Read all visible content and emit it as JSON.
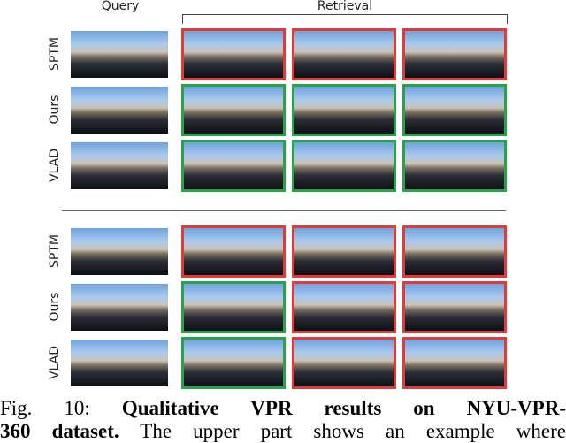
{
  "header": {
    "query": "Query",
    "retrieval": "Retrieval"
  },
  "groups": [
    {
      "rows": [
        {
          "label": "SPTM",
          "retrievals": [
            "#e23a36",
            "#e23a36",
            "#e23a36"
          ]
        },
        {
          "label": "Ours",
          "retrievals": [
            "#27a348",
            "#27a348",
            "#27a348"
          ]
        },
        {
          "label": "VLAD",
          "retrievals": [
            "#27a348",
            "#27a348",
            "#27a348"
          ]
        }
      ]
    },
    {
      "rows": [
        {
          "label": "SPTM",
          "retrievals": [
            "#e23a36",
            "#e23a36",
            "#e23a36"
          ]
        },
        {
          "label": "Ours",
          "retrievals": [
            "#27a348",
            "#e23a36",
            "#e23a36"
          ]
        },
        {
          "label": "VLAD",
          "retrievals": [
            "#27a348",
            "#e23a36",
            "#e23a36"
          ]
        }
      ]
    }
  ],
  "caption": {
    "lines": [
      [
        {
          "text": "Fig. 10: ",
          "bold": false
        },
        {
          "text": "Qualitative VPR results on NYU-VPR-",
          "bold": true
        }
      ],
      [
        {
          "text": "360 dataset.",
          "bold": true
        },
        {
          "text": " The upper part shows an example where",
          "bold": false
        }
      ]
    ]
  }
}
